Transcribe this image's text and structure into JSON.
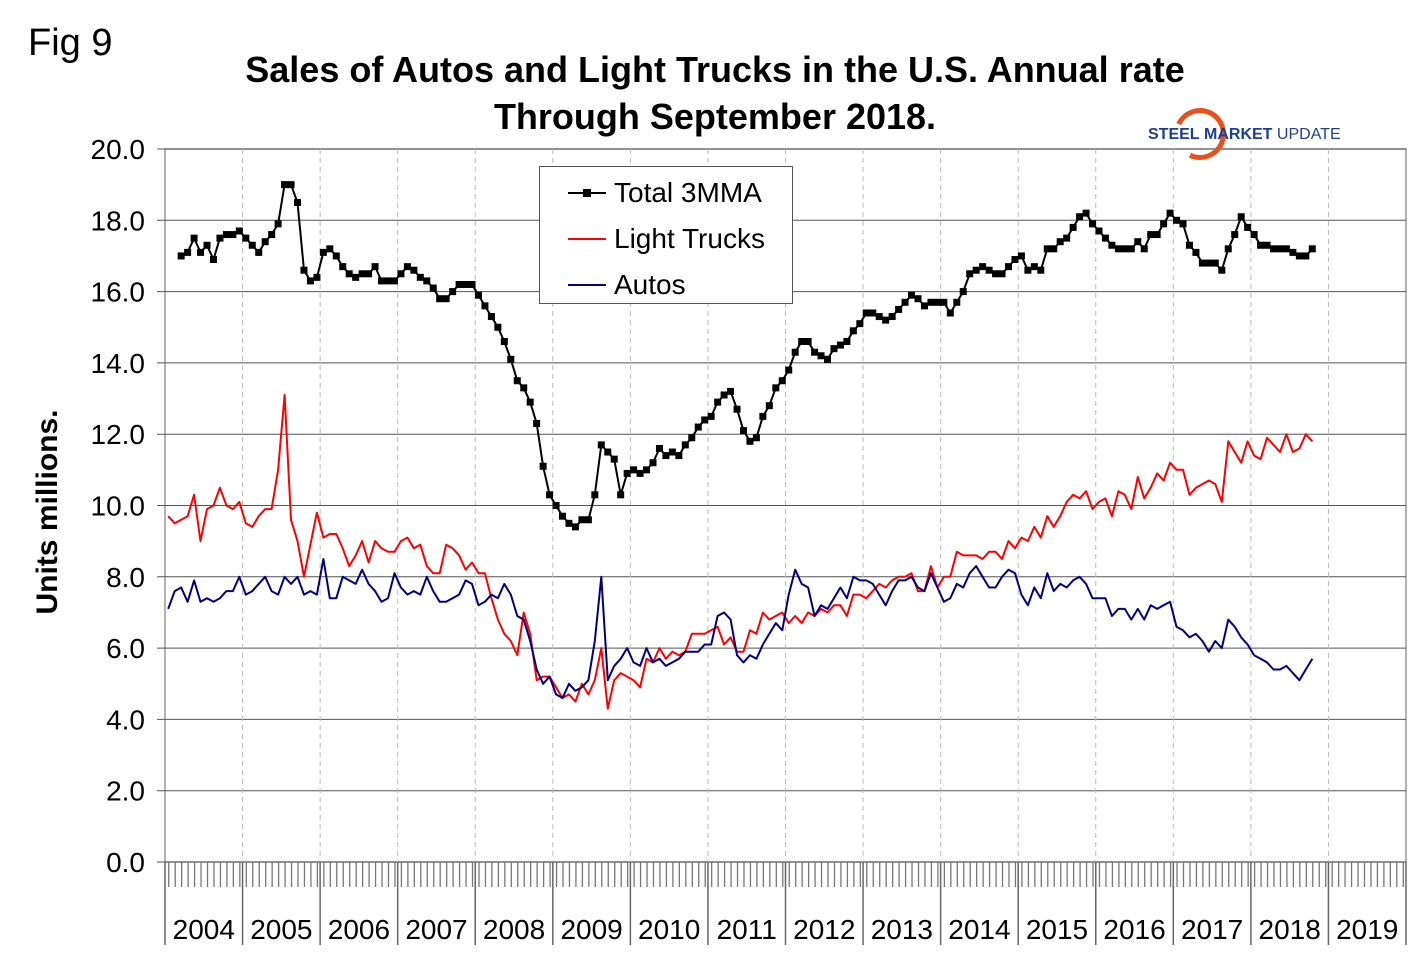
{
  "figure_label": "Fig 9",
  "logo": {
    "part1": "STEEL",
    "part2": "MARKET",
    "part3": "UPDATE"
  },
  "colors": {
    "total": "#000000",
    "trucks": "#ff0000",
    "autos": "#000080",
    "grid": "#555555"
  },
  "chart_data": {
    "type": "line",
    "title_line1": "Sales of Autos and Light Trucks in the U.S. Annual rate",
    "title_line2": "Through September 2018.",
    "xlabel": "",
    "ylabel": "Units millions.",
    "ylim": [
      0,
      20
    ],
    "yticks": [
      "0.0",
      "2.0",
      "4.0",
      "6.0",
      "8.0",
      "10.0",
      "12.0",
      "14.0",
      "16.0",
      "18.0",
      "20.0"
    ],
    "xticks": [
      "2004",
      "2005",
      "2006",
      "2007",
      "2008",
      "2009",
      "2010",
      "2011",
      "2012",
      "2013",
      "2014",
      "2015",
      "2016",
      "2017",
      "2018",
      "2019"
    ],
    "x_start": "2004-01",
    "x_frequency": "monthly",
    "legend_position": "top-center",
    "series": [
      {
        "name": "Total 3MMA",
        "key": "total",
        "marker": "square",
        "values": [
          null,
          null,
          17.0,
          17.1,
          17.5,
          17.1,
          17.3,
          16.9,
          17.5,
          17.6,
          17.6,
          17.7,
          17.5,
          17.3,
          17.1,
          17.4,
          17.6,
          17.9,
          19.0,
          19.0,
          18.5,
          16.6,
          16.3,
          16.4,
          17.1,
          17.2,
          17.0,
          16.7,
          16.5,
          16.4,
          16.5,
          16.5,
          16.7,
          16.3,
          16.3,
          16.3,
          16.5,
          16.7,
          16.6,
          16.4,
          16.3,
          16.1,
          15.8,
          15.8,
          16.0,
          16.2,
          16.2,
          16.2,
          15.9,
          15.6,
          15.3,
          15.0,
          14.6,
          14.1,
          13.5,
          13.3,
          12.9,
          12.3,
          11.1,
          10.3,
          10.0,
          9.7,
          9.5,
          9.4,
          9.6,
          9.6,
          10.3,
          11.7,
          11.5,
          11.3,
          10.3,
          10.9,
          11.0,
          10.9,
          11.0,
          11.2,
          11.6,
          11.4,
          11.5,
          11.4,
          11.7,
          11.9,
          12.2,
          12.4,
          12.5,
          12.9,
          13.1,
          13.2,
          12.7,
          12.1,
          11.8,
          11.9,
          12.5,
          12.8,
          13.3,
          13.5,
          13.8,
          14.3,
          14.6,
          14.6,
          14.3,
          14.2,
          14.1,
          14.4,
          14.5,
          14.6,
          14.9,
          15.1,
          15.4,
          15.4,
          15.3,
          15.2,
          15.3,
          15.5,
          15.7,
          15.9,
          15.8,
          15.6,
          15.7,
          15.7,
          15.7,
          15.4,
          15.7,
          16.0,
          16.5,
          16.6,
          16.7,
          16.6,
          16.5,
          16.5,
          16.7,
          16.9,
          17.0,
          16.6,
          16.7,
          16.6,
          17.2,
          17.2,
          17.4,
          17.5,
          17.8,
          18.1,
          18.2,
          17.9,
          17.7,
          17.5,
          17.3,
          17.2,
          17.2,
          17.2,
          17.4,
          17.2,
          17.6,
          17.6,
          17.9,
          18.2,
          18.0,
          17.9,
          17.3,
          17.1,
          16.8,
          16.8,
          16.8,
          16.6,
          17.2,
          17.6,
          18.1,
          17.8,
          17.6,
          17.3,
          17.3,
          17.2,
          17.2,
          17.2,
          17.1,
          17.0,
          17.0,
          17.2
        ]
      },
      {
        "name": "Light Trucks",
        "key": "trucks",
        "marker": "none",
        "values": [
          9.7,
          9.5,
          9.6,
          9.7,
          10.3,
          9.0,
          9.9,
          10.0,
          10.5,
          10.0,
          9.9,
          10.1,
          9.5,
          9.4,
          9.7,
          9.9,
          9.9,
          11.0,
          13.1,
          9.6,
          9.0,
          8.0,
          8.9,
          9.8,
          9.1,
          9.2,
          9.2,
          8.8,
          8.3,
          8.6,
          9.0,
          8.4,
          9.0,
          8.8,
          8.7,
          8.7,
          9.0,
          9.1,
          8.8,
          8.9,
          8.3,
          8.1,
          8.1,
          8.9,
          8.8,
          8.6,
          8.2,
          8.4,
          8.1,
          8.1,
          7.4,
          6.8,
          6.4,
          6.2,
          5.8,
          7.0,
          6.4,
          5.1,
          5.2,
          5.2,
          4.9,
          4.6,
          4.7,
          4.5,
          5.0,
          4.7,
          5.1,
          6.0,
          4.3,
          5.1,
          5.3,
          5.2,
          5.1,
          4.9,
          5.7,
          5.6,
          6.0,
          5.7,
          5.9,
          5.8,
          5.9,
          6.4,
          6.4,
          6.4,
          6.5,
          6.6,
          6.1,
          6.3,
          5.9,
          5.9,
          6.5,
          6.4,
          7.0,
          6.8,
          6.9,
          7.0,
          6.7,
          6.9,
          6.7,
          7.0,
          6.9,
          7.1,
          7.0,
          7.2,
          7.2,
          6.9,
          7.5,
          7.5,
          7.4,
          7.6,
          7.8,
          7.7,
          7.9,
          8.0,
          8.0,
          8.1,
          7.6,
          7.6,
          8.3,
          7.7,
          8.0,
          8.0,
          8.7,
          8.6,
          8.6,
          8.6,
          8.5,
          8.7,
          8.7,
          8.5,
          9.0,
          8.8,
          9.1,
          9.0,
          9.4,
          9.1,
          9.7,
          9.4,
          9.7,
          10.1,
          10.3,
          10.2,
          10.4,
          9.9,
          10.1,
          10.2,
          9.7,
          10.4,
          10.3,
          9.9,
          10.8,
          10.2,
          10.5,
          10.9,
          10.7,
          11.2,
          11.0,
          11.0,
          10.3,
          10.5,
          10.6,
          10.7,
          10.6,
          10.1,
          11.8,
          11.5,
          11.2,
          11.8,
          11.4,
          11.3,
          11.9,
          11.7,
          11.5,
          12.0,
          11.5,
          11.6,
          12.0,
          11.8
        ]
      },
      {
        "name": "Autos",
        "key": "autos",
        "marker": "none",
        "values": [
          7.1,
          7.6,
          7.7,
          7.3,
          7.9,
          7.3,
          7.4,
          7.3,
          7.4,
          7.6,
          7.6,
          8.0,
          7.5,
          7.6,
          7.8,
          8.0,
          7.6,
          7.5,
          8.0,
          7.8,
          8.0,
          7.5,
          7.6,
          7.5,
          8.5,
          7.4,
          7.4,
          8.0,
          7.9,
          7.8,
          8.2,
          7.8,
          7.6,
          7.3,
          7.4,
          8.1,
          7.7,
          7.5,
          7.6,
          7.5,
          8.0,
          7.6,
          7.3,
          7.3,
          7.4,
          7.5,
          7.9,
          7.8,
          7.2,
          7.3,
          7.5,
          7.4,
          7.8,
          7.5,
          6.9,
          6.8,
          6.2,
          5.4,
          5.0,
          5.2,
          4.7,
          4.6,
          5.0,
          4.8,
          4.9,
          5.1,
          6.2,
          8.0,
          5.1,
          5.5,
          5.7,
          6.0,
          5.6,
          5.5,
          6.0,
          5.6,
          5.7,
          5.5,
          5.6,
          5.7,
          5.9,
          5.9,
          5.9,
          6.1,
          6.1,
          6.9,
          7.0,
          6.8,
          5.8,
          5.6,
          5.8,
          5.7,
          6.1,
          6.4,
          6.7,
          6.5,
          7.5,
          8.2,
          7.8,
          7.7,
          6.9,
          7.2,
          7.1,
          7.4,
          7.7,
          7.4,
          8.0,
          7.9,
          7.9,
          7.8,
          7.5,
          7.2,
          7.6,
          7.9,
          7.9,
          8.0,
          7.7,
          7.6,
          8.1,
          7.7,
          7.3,
          7.4,
          7.8,
          7.7,
          8.1,
          8.3,
          8.0,
          7.7,
          7.7,
          8.0,
          8.2,
          8.1,
          7.5,
          7.2,
          7.7,
          7.4,
          8.1,
          7.6,
          7.8,
          7.7,
          7.9,
          8.0,
          7.8,
          7.4,
          7.4,
          7.4,
          6.9,
          7.1,
          7.1,
          6.8,
          7.1,
          6.8,
          7.2,
          7.1,
          7.2,
          7.3,
          6.6,
          6.5,
          6.3,
          6.4,
          6.2,
          5.9,
          6.2,
          6.0,
          6.8,
          6.6,
          6.3,
          6.1,
          5.8,
          5.7,
          5.6,
          5.4,
          5.4,
          5.5,
          5.3,
          5.1,
          5.4,
          5.7
        ]
      }
    ]
  }
}
